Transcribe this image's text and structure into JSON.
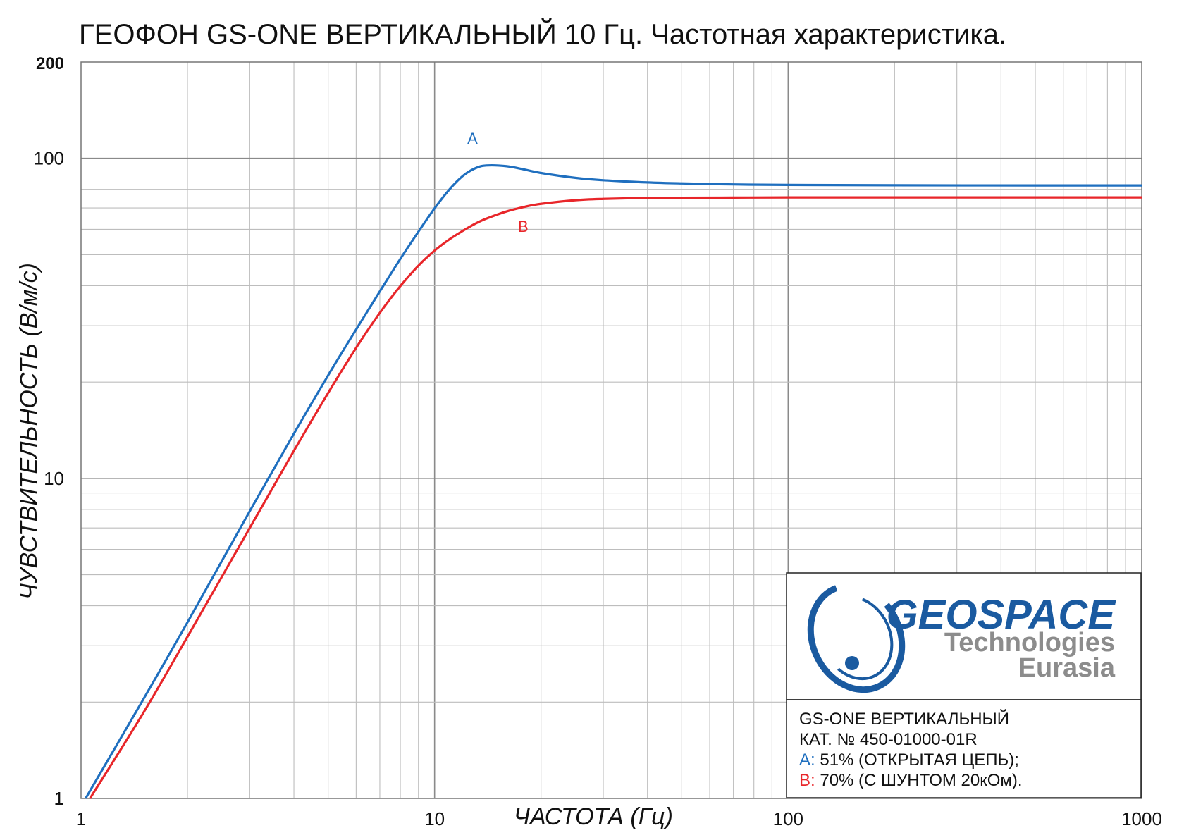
{
  "chart_data": {
    "type": "line",
    "title": "ГЕОФОН GS-ONE ВЕРТИКАЛЬНЫЙ 10 Гц. Частотная характеристика.",
    "xlabel": "ЧАСТОТА (Гц)",
    "ylabel": "ЧУВСТВИТЕЛЬНОСТЬ (В/м/с)",
    "x_scale": "log",
    "y_scale": "log",
    "xlim": [
      1,
      1000
    ],
    "ylim": [
      1,
      200
    ],
    "x_ticks": [
      {
        "value": 1,
        "label": "1"
      },
      {
        "value": 10,
        "label": "10"
      },
      {
        "value": 100,
        "label": "100"
      },
      {
        "value": 1000,
        "label": "1000"
      }
    ],
    "y_ticks": [
      {
        "value": 1,
        "label": "1"
      },
      {
        "value": 10,
        "label": "10"
      },
      {
        "value": 100,
        "label": "100"
      },
      {
        "value": 200,
        "label": "200"
      }
    ],
    "grid": true,
    "series": [
      {
        "name": "A",
        "color": "#1f6fbf",
        "x": [
          1.03,
          1.5,
          2,
          3,
          4,
          5,
          6,
          7,
          8,
          9,
          10,
          11,
          12,
          13,
          14,
          16,
          18,
          20,
          25,
          30,
          40,
          50,
          70,
          100,
          200,
          500,
          1000
        ],
        "y": [
          1.0,
          2.04,
          3.55,
          7.9,
          13.8,
          21.0,
          29.2,
          38.4,
          48.5,
          59.0,
          69.8,
          79.8,
          88.0,
          93.0,
          95.0,
          94.5,
          92.2,
          90.0,
          86.9,
          85.4,
          84.1,
          83.5,
          82.9,
          82.6,
          82.4,
          82.3,
          82.3
        ]
      },
      {
        "name": "B",
        "color": "#e8262a",
        "x": [
          1.06,
          1.5,
          2,
          3,
          4,
          5,
          6,
          7,
          8,
          9,
          10,
          11,
          12,
          13,
          14,
          16,
          18,
          20,
          25,
          30,
          40,
          50,
          70,
          100,
          200,
          500,
          1000
        ],
        "y": [
          1.0,
          1.85,
          3.2,
          7.0,
          12.2,
          18.5,
          25.6,
          32.9,
          39.9,
          46.2,
          51.5,
          55.8,
          59.3,
          62.4,
          64.8,
          68.3,
          70.6,
          72.1,
          74.0,
          74.7,
          75.2,
          75.3,
          75.4,
          75.5,
          75.5,
          75.5,
          75.5
        ]
      }
    ],
    "annotations": [
      {
        "text": "A",
        "x": 12.8,
        "y": 111,
        "color": "#1f6fbf"
      },
      {
        "text": "B",
        "x": 17.8,
        "y": 59,
        "color": "#e8262a"
      }
    ]
  },
  "logo": {
    "name": "GEOSPACE",
    "line2": "Technologies",
    "line3": "Eurasia"
  },
  "info_box": {
    "line1": "GS-ONE ВЕРТИКАЛЬНЫЙ",
    "line2": "КАТ.  №  450-01000-01R",
    "line3_prefix": "A:",
    "line3_text": " 51% (ОТКРЫТАЯ ЦЕПЬ);",
    "line4_prefix": "B:",
    "line4_text": " 70% (С ШУНТОМ 20кОм).",
    "color_a": "#1f6fbf",
    "color_b": "#e8262a"
  }
}
